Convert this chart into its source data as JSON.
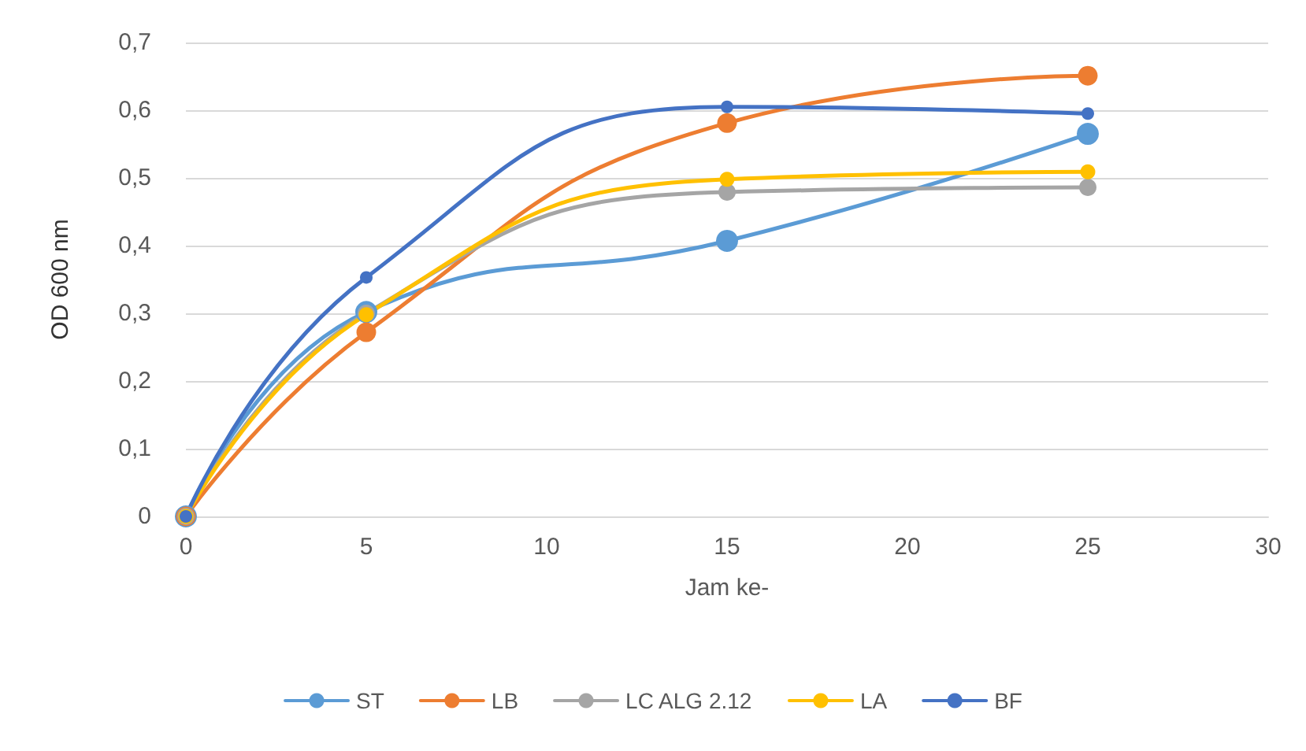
{
  "chart_data": {
    "type": "line",
    "xlabel": "Jam ke-",
    "ylabel": "OD 600 nm",
    "x": [
      0,
      5,
      15,
      25
    ],
    "series": [
      {
        "name": "ST",
        "color": "#5b9bd5",
        "values": [
          0,
          0.302,
          0.407,
          0.565
        ]
      },
      {
        "name": "LB",
        "color": "#ed7d31",
        "values": [
          0,
          0.272,
          0.581,
          0.651
        ]
      },
      {
        "name": "LC ALG 2.12",
        "color": "#a5a5a5",
        "values": [
          0,
          0.3,
          0.479,
          0.486
        ]
      },
      {
        "name": "LA",
        "color": "#ffc000",
        "values": [
          0,
          0.298,
          0.498,
          0.509
        ]
      },
      {
        "name": "BF",
        "color": "#4472c4",
        "values": [
          0,
          0.353,
          0.605,
          0.595
        ]
      }
    ],
    "xlim": [
      0,
      30
    ],
    "xticks": [
      0,
      5,
      10,
      15,
      20,
      25,
      30
    ],
    "ylim": [
      0,
      0.7
    ],
    "yticks": [
      {
        "value": 0,
        "label": "0"
      },
      {
        "value": 0.1,
        "label": "0,1"
      },
      {
        "value": 0.2,
        "label": "0,2"
      },
      {
        "value": 0.3,
        "label": "0,3"
      },
      {
        "value": 0.4,
        "label": "0,4"
      },
      {
        "value": 0.5,
        "label": "0,5"
      },
      {
        "value": 0.6,
        "label": "0,6"
      },
      {
        "value": 0.7,
        "label": "0,7"
      }
    ],
    "grid": "y",
    "legend": "bottom",
    "marker": "circle",
    "line_style": "solid"
  }
}
